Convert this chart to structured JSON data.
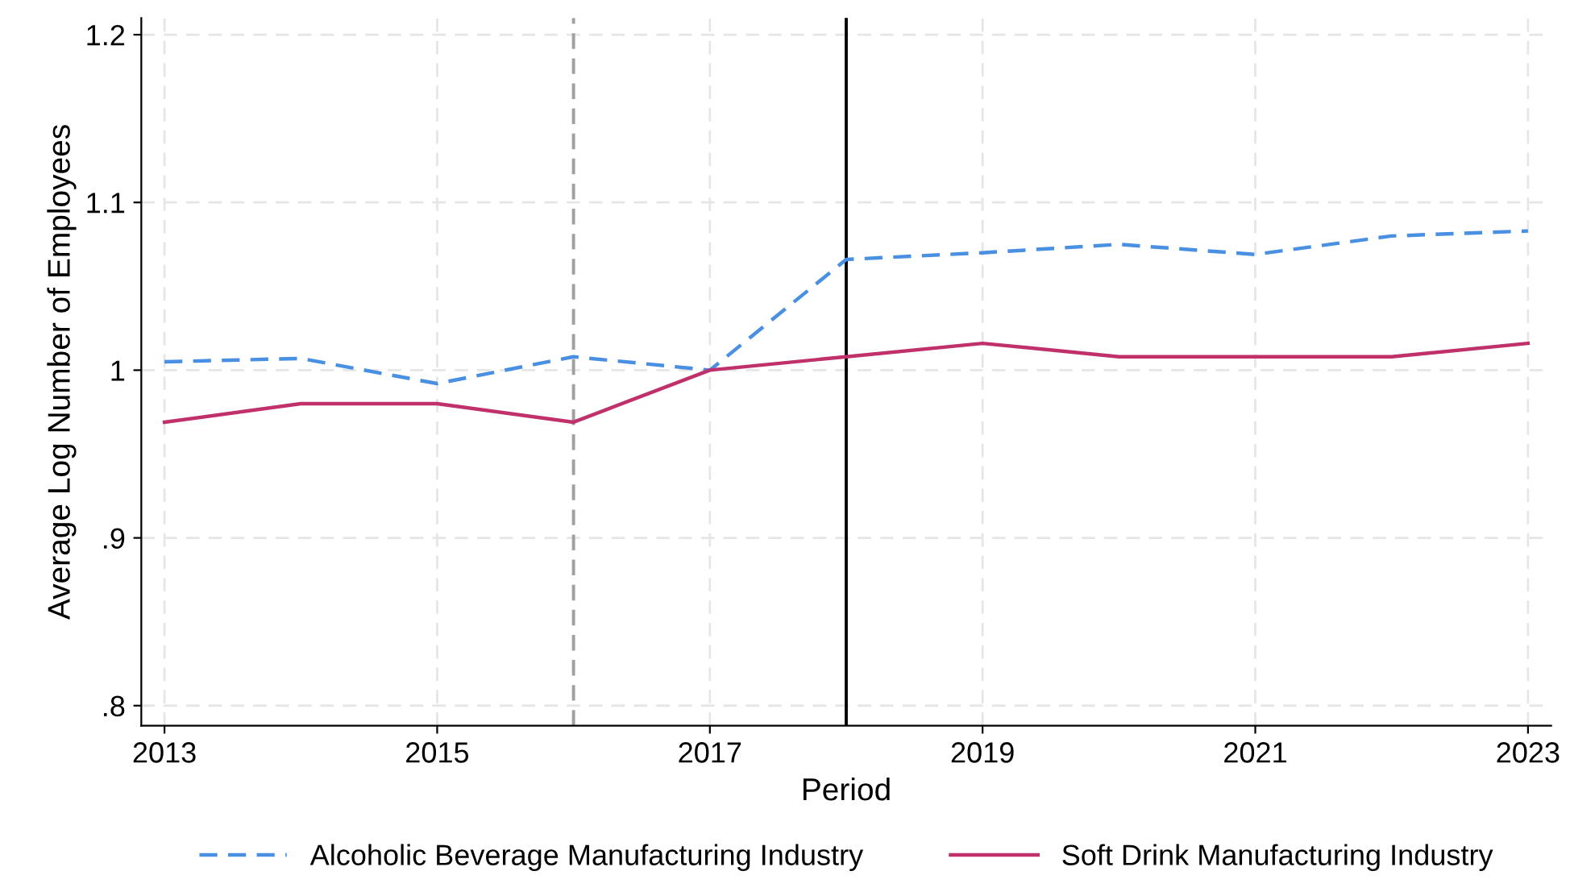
{
  "chart_data": {
    "type": "line",
    "xlabel": "Period",
    "ylabel": "Average Log Number of Employees",
    "x": [
      2013,
      2014,
      2015,
      2016,
      2017,
      2018,
      2019,
      2020,
      2021,
      2022,
      2023
    ],
    "series": [
      {
        "name": "Alcoholic Beverage Manufacturing Industry",
        "color": "#4a90e2",
        "line_style": "dashed",
        "values": [
          1.005,
          1.007,
          0.992,
          1.008,
          1.0,
          1.066,
          1.07,
          1.075,
          1.069,
          1.08,
          1.083
        ]
      },
      {
        "name": "Soft Drink Manufacturing Industry",
        "color": "#c0306b",
        "line_style": "solid",
        "values": [
          0.969,
          0.98,
          0.98,
          0.969,
          1.0,
          1.008,
          1.016,
          1.008,
          1.008,
          1.008,
          1.016
        ]
      }
    ],
    "xlim": [
      2012.83,
      2023.17
    ],
    "xticks": [
      2013,
      2015,
      2017,
      2019,
      2021,
      2023
    ],
    "ylim": [
      0.788,
      1.21
    ],
    "yticks": [
      {
        "value": 0.8,
        "label": ".8"
      },
      {
        "value": 0.9,
        "label": ".9"
      },
      {
        "value": 1.0,
        "label": "1"
      },
      {
        "value": 1.1,
        "label": "1.1"
      },
      {
        "value": 1.2,
        "label": "1.2"
      }
    ],
    "ref_lines": [
      {
        "axis": "x",
        "value": 2016,
        "color": "#a0a0a0",
        "line_style": "dashed"
      },
      {
        "axis": "x",
        "value": 2018,
        "color": "#000000",
        "line_style": "solid"
      }
    ],
    "grid": true,
    "legend": "bottom",
    "marker": "none"
  }
}
